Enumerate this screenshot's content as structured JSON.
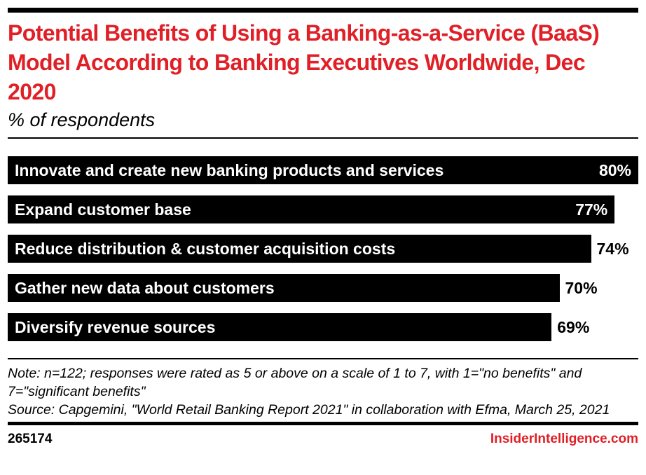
{
  "header": {
    "title": "Potential Benefits of Using a Banking-as-a-Service (BaaS) Model According to Banking Executives Worldwide, Dec 2020",
    "subtitle": "% of respondents"
  },
  "chart_data": {
    "type": "bar",
    "orientation": "horizontal",
    "title": "Potential Benefits of Using a Banking-as-a-Service (BaaS) Model According to Banking Executives Worldwide, Dec 2020",
    "subtitle": "% of respondents",
    "categories": [
      "Innovate and create new banking products and services",
      "Expand customer base",
      "Reduce distribution & customer acquisition costs",
      "Gather new data about customers",
      "Diversify revenue sources"
    ],
    "values": [
      80,
      77,
      74,
      70,
      69
    ],
    "value_suffix": "%",
    "xlabel": "",
    "ylabel": "",
    "xlim": [
      0,
      80
    ],
    "grid": false,
    "legend": false,
    "bar_color": "#000000",
    "inside_label_color": "#ffffff",
    "outside_label_color": "#000000"
  },
  "footnote": {
    "note": "Note: n=122; responses were rated as 5 or above on a scale of 1 to 7, with 1=\"no benefits\" and 7=\"significant benefits\"",
    "source": "Source: Capgemini, \"World Retail Banking Report 2021\" in collaboration with Efma, March 25, 2021"
  },
  "footer": {
    "chart_id": "265174",
    "brand": "InsiderIntelligence.com"
  },
  "colors": {
    "accent_red": "#e01f26",
    "bar_black": "#000000"
  }
}
